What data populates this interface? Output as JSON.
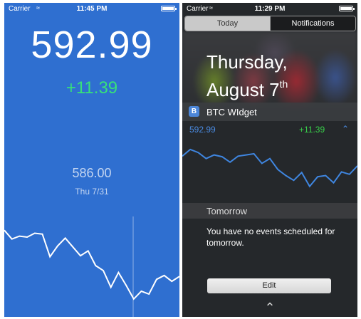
{
  "app_screen": {
    "status": {
      "carrier": "Carrier",
      "time": "11:45 PM"
    },
    "price": "592.99",
    "change": "+11.39",
    "selected_price": "586.00",
    "selected_date": "Thu 7/31",
    "chart_points": [
      0.86,
      0.77,
      0.8,
      0.79,
      0.83,
      0.82,
      0.59,
      0.7,
      0.78,
      0.69,
      0.6,
      0.65,
      0.5,
      0.45,
      0.28,
      0.43,
      0.3,
      0.16,
      0.24,
      0.21,
      0.36,
      0.4,
      0.34,
      0.39
    ]
  },
  "notification_center": {
    "status": {
      "carrier": "Carrier",
      "time": "11:29 PM"
    },
    "tabs": {
      "today": "Today",
      "notifications": "Notifications"
    },
    "date_line1": "Thursday,",
    "date_line2": "August 7",
    "date_suffix": "th",
    "widget": {
      "icon_letter": "B",
      "title": "BTC WIdget",
      "price": "592.99",
      "change": "+11.39",
      "chart_points": [
        0.82,
        0.93,
        0.88,
        0.78,
        0.84,
        0.81,
        0.72,
        0.82,
        0.84,
        0.86,
        0.7,
        0.78,
        0.6,
        0.5,
        0.42,
        0.55,
        0.32,
        0.48,
        0.5,
        0.38,
        0.56,
        0.52,
        0.66
      ]
    },
    "tomorrow_label": "Tomorrow",
    "no_events_text": "You have no events scheduled for tomorrow.",
    "edit_label": "Edit"
  },
  "colors": {
    "app_background": "#2f6fd0",
    "positive_change": "#37e07a",
    "widget_line": "#3f86e0",
    "widget_change": "#38d04a"
  }
}
